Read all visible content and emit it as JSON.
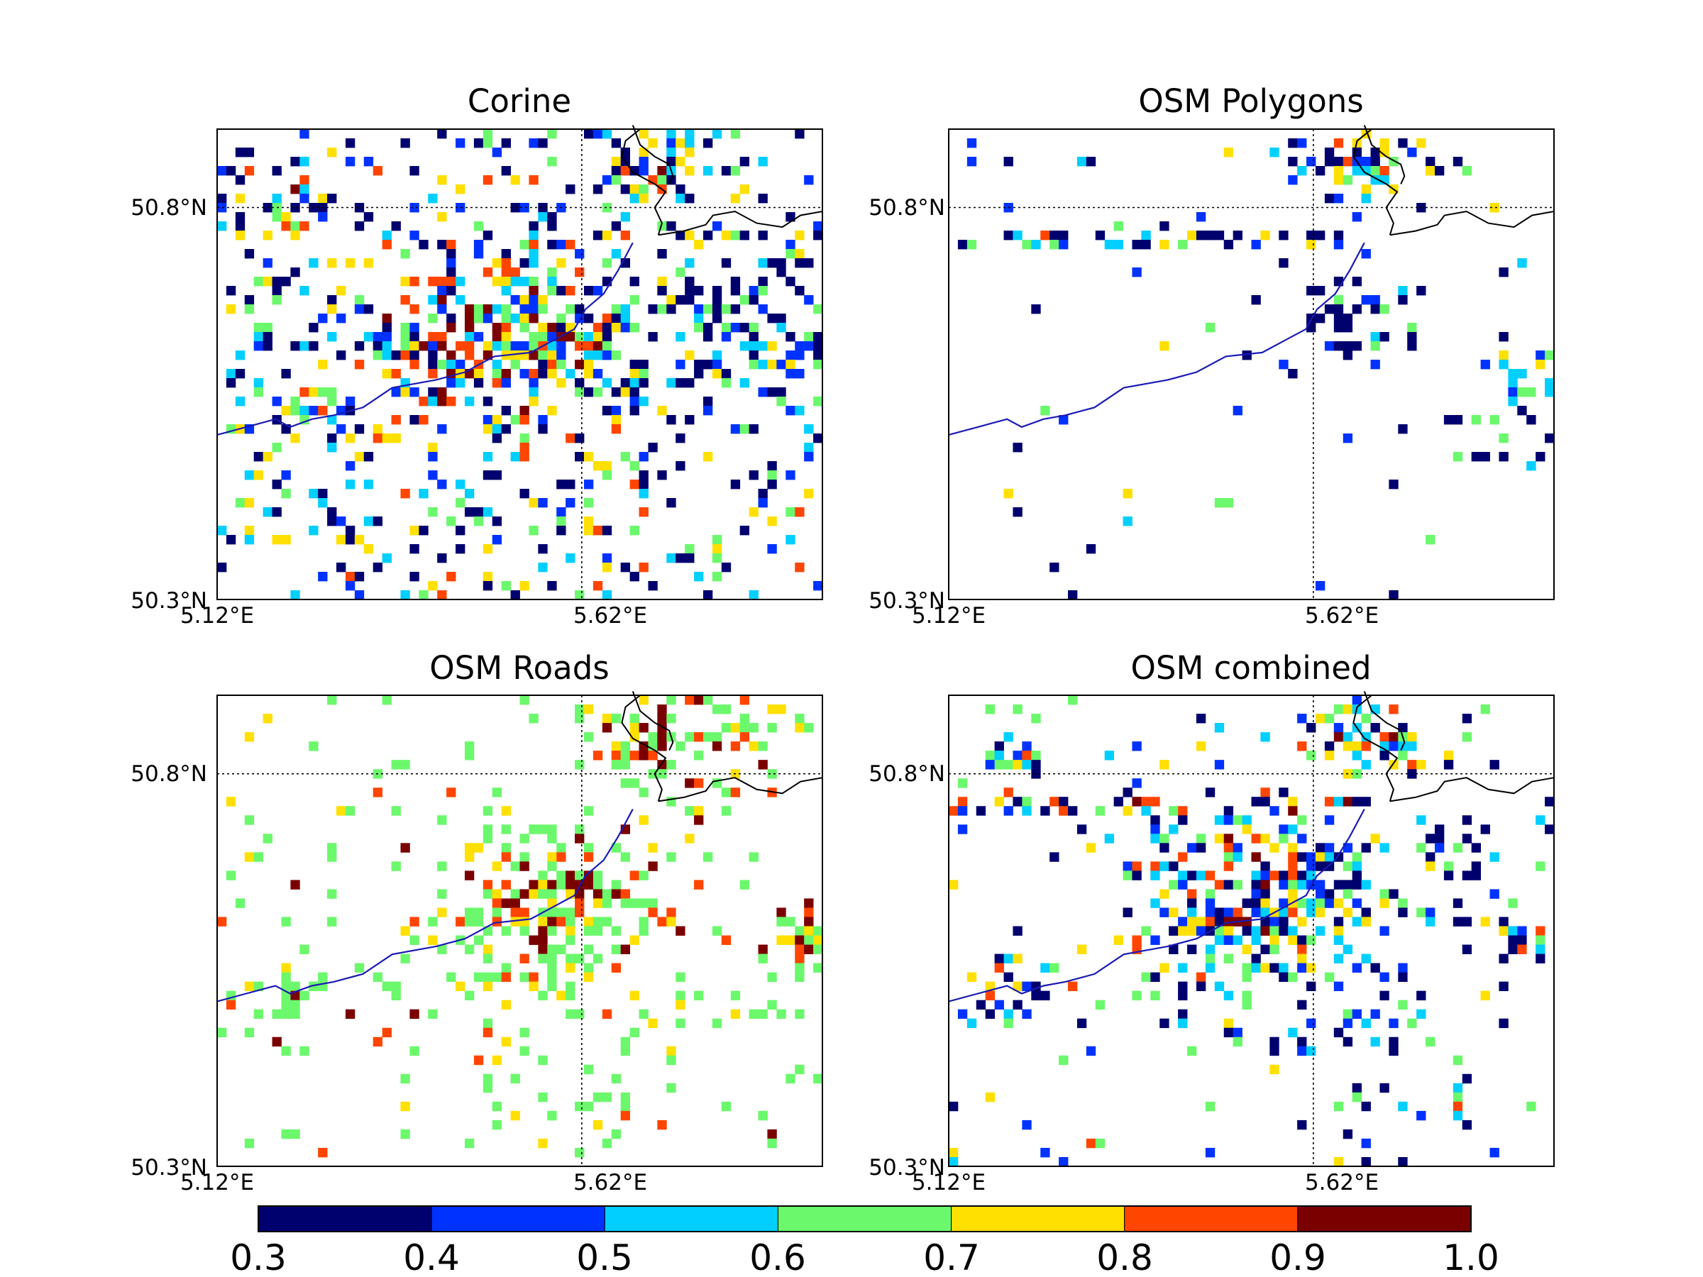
{
  "figure": {
    "colors": {
      "levels": [
        "#00006e",
        "#0032ff",
        "#00cfff",
        "#6cf86c",
        "#ffe000",
        "#ff4500",
        "#7a0000"
      ],
      "grid": "#000000",
      "border": "#000000",
      "river": "#1a1ab4"
    }
  },
  "chart_data": [
    {
      "type": "heatmap",
      "title": "Corine",
      "xlim_deg_e": [
        5.12,
        5.95
      ],
      "ylim_deg_n": [
        50.3,
        50.9
      ],
      "xticks": [
        {
          "value": 5.12,
          "label": "5.12°E"
        },
        {
          "value": 5.62,
          "label": "5.62°E"
        }
      ],
      "yticks": [
        {
          "value": 50.8,
          "label": "50.8°N"
        },
        {
          "value": 50.3,
          "label": "50.3°N"
        }
      ],
      "clusters": [
        {
          "lon": 5.55,
          "lat": 50.65,
          "r": 0.12,
          "dens": 0.65,
          "bias": 0.35
        },
        {
          "lon": 5.44,
          "lat": 50.64,
          "r": 0.1,
          "dens": 0.55,
          "bias": 0.2
        },
        {
          "lon": 5.23,
          "lat": 50.81,
          "r": 0.04,
          "dens": 0.55,
          "bias": 0.3
        },
        {
          "lon": 5.72,
          "lat": 50.86,
          "r": 0.05,
          "dens": 0.6,
          "bias": 0.3
        },
        {
          "lon": 5.92,
          "lat": 50.62,
          "r": 0.05,
          "dens": 0.5,
          "bias": 0.2
        },
        {
          "lon": 5.25,
          "lat": 50.54,
          "r": 0.05,
          "dens": 0.5,
          "bias": 0.1
        },
        {
          "lon": 5.82,
          "lat": 50.66,
          "r": 0.12,
          "dens": 0.4,
          "bias": -0.3
        }
      ],
      "background_density": 0.16,
      "background_bias": -0.35
    },
    {
      "type": "heatmap",
      "title": "OSM Polygons",
      "xlim_deg_e": [
        5.12,
        5.95
      ],
      "ylim_deg_n": [
        50.3,
        50.9
      ],
      "xticks": [
        {
          "value": 5.12,
          "label": "5.12°E"
        },
        {
          "value": 5.62,
          "label": "5.62°E"
        }
      ],
      "yticks": [
        {
          "value": 50.8,
          "label": "50.8°N"
        },
        {
          "value": 50.3,
          "label": "50.3°N"
        }
      ],
      "clusters": [
        {
          "lon": 5.7,
          "lat": 50.86,
          "r": 0.05,
          "dens": 0.6,
          "bias": 0.3
        },
        {
          "lon": 5.92,
          "lat": 50.58,
          "r": 0.04,
          "dens": 0.5,
          "bias": 0.2
        },
        {
          "lon": 5.67,
          "lat": 50.68,
          "r": 0.06,
          "dens": 0.35,
          "bias": -0.2
        },
        {
          "lon": 5.88,
          "lat": 50.52,
          "r": 0.04,
          "dens": 0.35,
          "bias": -0.2
        }
      ],
      "lines": [
        {
          "lat": 50.76,
          "lon_from": 5.12,
          "lon_to": 5.7,
          "dens": 0.55,
          "bias": 0.25
        }
      ],
      "background_density": 0.012,
      "background_bias": -0.5
    },
    {
      "type": "heatmap",
      "title": "OSM Roads",
      "xlim_deg_e": [
        5.12,
        5.95
      ],
      "ylim_deg_n": [
        50.3,
        50.9
      ],
      "xticks": [
        {
          "value": 5.12,
          "label": "5.12°E"
        },
        {
          "value": 5.62,
          "label": "5.62°E"
        }
      ],
      "yticks": [
        {
          "value": 50.8,
          "label": "50.8°N"
        },
        {
          "value": 50.3,
          "label": "50.3°N"
        }
      ],
      "clusters": [
        {
          "lon": 5.57,
          "lat": 50.63,
          "r": 0.09,
          "dens": 0.75,
          "bias": 0.35
        },
        {
          "lon": 5.7,
          "lat": 50.85,
          "r": 0.05,
          "dens": 0.65,
          "bias": 0.4
        },
        {
          "lon": 5.92,
          "lat": 50.59,
          "r": 0.04,
          "dens": 0.55,
          "bias": 0.35
        },
        {
          "lon": 5.22,
          "lat": 50.52,
          "r": 0.04,
          "dens": 0.5,
          "bias": 0.15
        },
        {
          "lon": 5.8,
          "lat": 50.85,
          "r": 0.06,
          "dens": 0.45,
          "bias": 0.2
        },
        {
          "lon": 5.65,
          "lat": 50.48,
          "r": 0.15,
          "dens": 0.18,
          "bias": -0.1
        }
      ],
      "background_density": 0.05,
      "background_bias": -0.15,
      "value_floor": 0.6
    },
    {
      "type": "heatmap",
      "title": "OSM combined",
      "xlim_deg_e": [
        5.12,
        5.95
      ],
      "ylim_deg_n": [
        50.3,
        50.9
      ],
      "xticks": [
        {
          "value": 5.12,
          "label": "5.12°E"
        },
        {
          "value": 5.62,
          "label": "5.62°E"
        }
      ],
      "yticks": [
        {
          "value": 50.8,
          "label": "50.8°N"
        },
        {
          "value": 50.3,
          "label": "50.3°N"
        }
      ],
      "clusters": [
        {
          "lon": 5.55,
          "lat": 50.63,
          "r": 0.1,
          "dens": 0.75,
          "bias": 0.3
        },
        {
          "lon": 5.7,
          "lat": 50.85,
          "r": 0.05,
          "dens": 0.65,
          "bias": 0.3
        },
        {
          "lon": 5.92,
          "lat": 50.59,
          "r": 0.04,
          "dens": 0.55,
          "bias": 0.2
        },
        {
          "lon": 5.2,
          "lat": 50.52,
          "r": 0.04,
          "dens": 0.5,
          "bias": 0.1
        },
        {
          "lon": 5.2,
          "lat": 50.82,
          "r": 0.03,
          "dens": 0.5,
          "bias": 0.3
        },
        {
          "lon": 5.65,
          "lat": 50.48,
          "r": 0.14,
          "dens": 0.2,
          "bias": -0.2
        },
        {
          "lon": 5.8,
          "lat": 50.66,
          "r": 0.08,
          "dens": 0.35,
          "bias": -0.3
        }
      ],
      "lines": [
        {
          "lat": 50.76,
          "lon_from": 5.12,
          "lon_to": 5.7,
          "dens": 0.45,
          "bias": 0.2
        }
      ],
      "background_density": 0.04,
      "background_bias": -0.3
    }
  ],
  "colorbar": {
    "ticks": [
      "0.3",
      "0.4",
      "0.5",
      "0.6",
      "0.7",
      "0.8",
      "0.9",
      "1.0"
    ],
    "bounds": [
      0.3,
      0.4,
      0.5,
      0.6,
      0.7,
      0.8,
      0.9,
      1.0
    ]
  }
}
